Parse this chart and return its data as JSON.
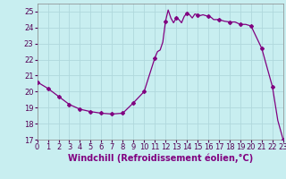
{
  "hours": [
    0,
    1,
    2,
    3,
    4,
    5,
    6,
    7,
    8,
    9,
    10,
    11,
    11.25,
    11.5,
    11.75,
    12,
    12.25,
    12.5,
    12.75,
    13,
    13.25,
    13.5,
    13.75,
    14,
    14.25,
    14.5,
    14.75,
    15,
    15.25,
    15.5,
    15.75,
    16,
    16.25,
    16.5,
    17,
    17.5,
    18,
    18.5,
    19,
    19.5,
    20,
    21,
    22,
    22.5,
    23
  ],
  "values": [
    20.6,
    20.2,
    19.7,
    19.2,
    18.9,
    18.75,
    18.65,
    18.6,
    18.65,
    19.3,
    20.0,
    22.1,
    22.5,
    22.6,
    23.1,
    24.4,
    25.1,
    24.6,
    24.3,
    24.6,
    24.5,
    24.3,
    24.7,
    24.9,
    24.8,
    24.6,
    24.85,
    24.8,
    24.75,
    24.8,
    24.75,
    24.7,
    24.65,
    24.5,
    24.5,
    24.4,
    24.35,
    24.35,
    24.2,
    24.2,
    24.1,
    22.7,
    20.3,
    18.2,
    17.0
  ],
  "line_color": "#800080",
  "bg_color": "#c8eef0",
  "grid_color": "#b0d8dc",
  "xlabel": "Windchill (Refroidissement éolien,°C)",
  "xlim": [
    0,
    23
  ],
  "ylim": [
    17,
    25.5
  ],
  "yticks": [
    17,
    18,
    19,
    20,
    21,
    22,
    23,
    24,
    25
  ],
  "xticks": [
    0,
    1,
    2,
    3,
    4,
    5,
    6,
    7,
    8,
    9,
    10,
    11,
    12,
    13,
    14,
    15,
    16,
    17,
    18,
    19,
    20,
    21,
    22,
    23
  ],
  "xlabel_fontsize": 7,
  "tick_fontsize": 6,
  "figwidth": 3.2,
  "figheight": 2.0,
  "dpi": 100
}
